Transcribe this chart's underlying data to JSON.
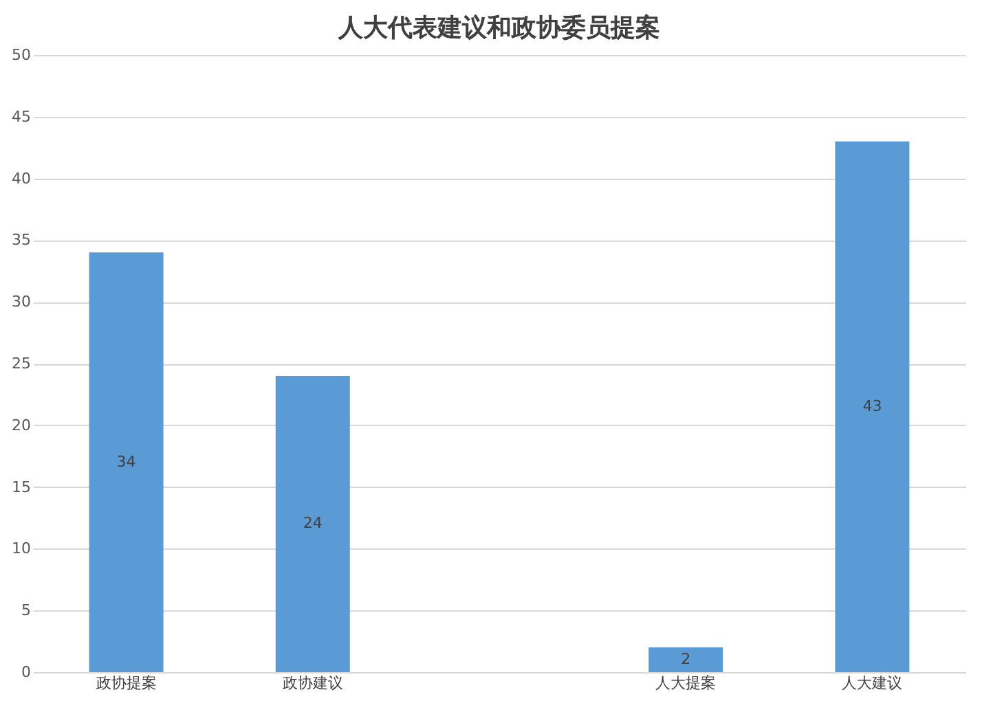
{
  "chart_data": {
    "type": "bar",
    "title": "人大代表建议和政协委员提案",
    "categories": [
      "政协提案",
      "政协建议",
      null,
      "人大提案",
      "人大建议"
    ],
    "values": [
      34,
      24,
      null,
      2,
      43
    ],
    "color": "#5b9bd5",
    "ylim": [
      0,
      50
    ],
    "yticks": [
      0,
      5,
      10,
      15,
      20,
      25,
      30,
      35,
      40,
      45,
      50
    ],
    "grid": "y",
    "data_labels": true
  }
}
